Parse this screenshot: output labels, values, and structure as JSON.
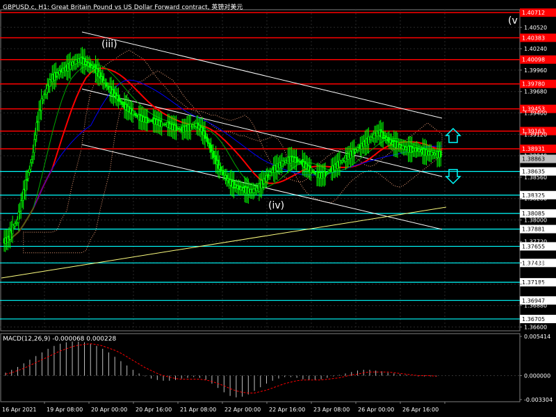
{
  "header": {
    "title": "GBPUSD.c, H1:  Great Britain Pound vs US Dollar Forward contract, 英镑对美元"
  },
  "colors": {
    "background": "#000000",
    "candle": "#00ff00",
    "red_level": "#ff0000",
    "cyan_level": "#00ffff",
    "trend_line": "#ffffff",
    "long_trend": "#ffff80",
    "ma_red": "#ff0000",
    "ma_blue": "#0000ff",
    "cloud": "#f4a27a",
    "macd_hist": "#c0c0c0",
    "macd_signal": "#ff0000",
    "arrow": "#00ffff"
  },
  "chart_data": {
    "type": "candlestick",
    "symbol": "GBPUSD.c",
    "timeframe": "H1",
    "price_axis_labels": [
      "1.40520",
      "1.40240",
      "1.39960",
      "1.39680",
      "1.39400",
      "1.39120",
      "1.38840",
      "1.38560",
      "1.38280",
      "1.38000",
      "1.37720",
      "1.37440",
      "1.37160",
      "1.36880",
      "1.36600"
    ],
    "ylim": [
      1.3655,
      1.4075
    ],
    "time_axis_labels": [
      "16 Apr 2021",
      "19 Apr 08:00",
      "20 Apr 00:00",
      "20 Apr 16:00",
      "21 Apr 08:00",
      "22 Apr 00:00",
      "22 Apr 16:00",
      "23 Apr 08:00",
      "26 Apr 00:00",
      "26 Apr 16:00"
    ],
    "red_levels": [
      "1.40712",
      "1.40383",
      "1.40098",
      "1.39780",
      "1.39453",
      "1.39163",
      "1.38931"
    ],
    "cyan_levels": [
      "1.38635",
      "1.38325",
      "1.38085",
      "1.37881",
      "1.37655",
      "1.37438",
      "1.37185",
      "1.36947",
      "1.36705"
    ],
    "current_price": "1.38863",
    "wave_labels": [
      "(iii)",
      "(iv)",
      "(v"
    ],
    "ohlc_path": [
      1.3772,
      1.3775,
      1.379,
      1.38,
      1.383,
      1.3855,
      1.388,
      1.3925,
      1.3955,
      1.397,
      1.3985,
      1.399,
      1.3995,
      1.3998,
      1.4003,
      1.4007,
      1.401,
      1.4006,
      1.4002,
      1.3998,
      1.399,
      1.398,
      1.3972,
      1.3965,
      1.3958,
      1.395,
      1.3945,
      1.394,
      1.3935,
      1.3932,
      1.393,
      1.393,
      1.3928,
      1.3925,
      1.3925,
      1.3922,
      1.392,
      1.3918,
      1.392,
      1.3922,
      1.3925,
      1.392,
      1.391,
      1.3895,
      1.388,
      1.3868,
      1.3858,
      1.385,
      1.3845,
      1.3842,
      1.384,
      1.3838,
      1.3838,
      1.3842,
      1.385,
      1.3858,
      1.3865,
      1.387,
      1.3875,
      1.3878,
      1.388,
      1.3878,
      1.3875,
      1.387,
      1.3865,
      1.386,
      1.3858,
      1.386,
      1.3865,
      1.387,
      1.3875,
      1.388,
      1.3885,
      1.389,
      1.3895,
      1.39,
      1.3905,
      1.391,
      1.3915,
      1.391,
      1.3905,
      1.39,
      1.3898,
      1.3895,
      1.3893,
      1.3892,
      1.3892,
      1.389,
      1.3888,
      1.3887,
      1.3886,
      1.3886
    ],
    "macd": {
      "label": "MACD(12,26,9) -0.000068 0.000228",
      "axis_labels": [
        "0.005414",
        "0.000000",
        "-0.003304"
      ],
      "ylim": [
        -0.0036,
        0.0058
      ],
      "histogram": [
        0.0004,
        0.0008,
        0.0012,
        0.0017,
        0.0022,
        0.0027,
        0.0032,
        0.0037,
        0.0041,
        0.0044,
        0.0046,
        0.0047,
        0.0047,
        0.0046,
        0.0044,
        0.0041,
        0.0037,
        0.0032,
        0.0026,
        0.002,
        0.0014,
        0.0008,
        0.0003,
        -0.0001,
        -0.0004,
        -0.0006,
        -0.0007,
        -0.0007,
        -0.0006,
        -0.0004,
        -0.0003,
        -0.0002,
        -0.0003,
        -0.0006,
        -0.0011,
        -0.0017,
        -0.0023,
        -0.0028,
        -0.003,
        -0.0029,
        -0.0026,
        -0.0021,
        -0.0016,
        -0.0011,
        -0.0007,
        -0.0004,
        -0.0002,
        -0.0002,
        -0.0003,
        -0.0005,
        -0.0006,
        -0.0006,
        -0.0005,
        -0.0003,
        -0.0001,
        0.0001,
        0.0003,
        0.0005,
        0.0007,
        0.0008,
        0.0008,
        0.0007,
        0.0006,
        0.0004,
        0.0003,
        0.0002,
        0.0001,
        0.0,
        -0.0001,
        -0.0001,
        -0.0001,
        -0.0001
      ],
      "signal": [
        0.0002,
        0.0004,
        0.0007,
        0.001,
        0.0014,
        0.0018,
        0.0022,
        0.0026,
        0.003,
        0.0034,
        0.0037,
        0.004,
        0.0042,
        0.0043,
        0.0044,
        0.0043,
        0.0041,
        0.0038,
        0.0035,
        0.0031,
        0.0026,
        0.0021,
        0.0016,
        0.0011,
        0.0007,
        0.0003,
        0.0,
        -0.0002,
        -0.0004,
        -0.0005,
        -0.0005,
        -0.0005,
        -0.0005,
        -0.0006,
        -0.0008,
        -0.0011,
        -0.0014,
        -0.0018,
        -0.0021,
        -0.0023,
        -0.0024,
        -0.0024,
        -0.0022,
        -0.002,
        -0.0017,
        -0.0014,
        -0.0011,
        -0.0009,
        -0.0007,
        -0.0006,
        -0.0006,
        -0.0006,
        -0.0006,
        -0.0005,
        -0.0004,
        -0.0003,
        -0.0001,
        0.0001,
        0.0002,
        0.0004,
        0.0005,
        0.0005,
        0.0005,
        0.0005,
        0.0004,
        0.0003,
        0.0002,
        0.0001,
        0.0,
        0.0,
        0.0,
        -0.0001
      ]
    }
  }
}
